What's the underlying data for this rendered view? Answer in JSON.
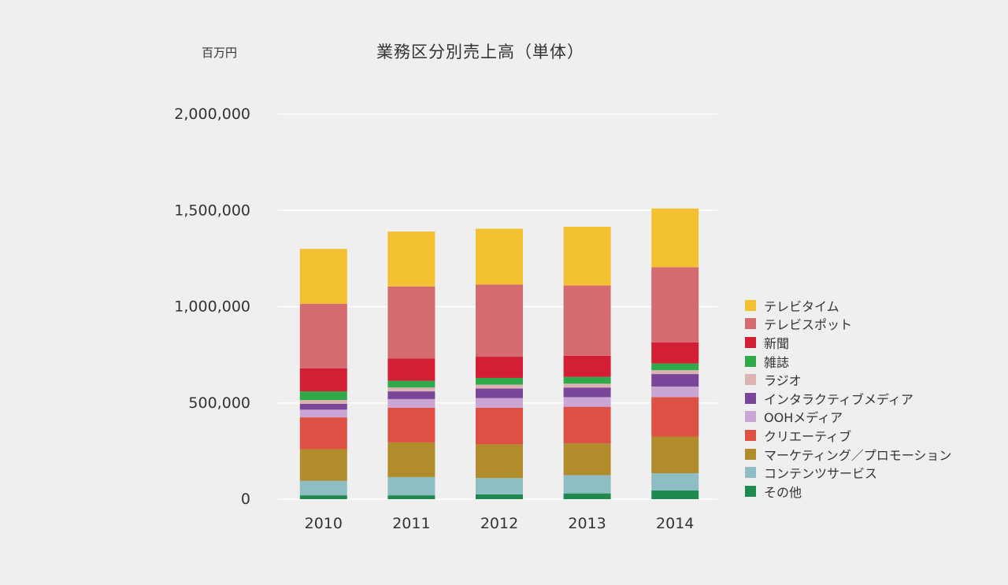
{
  "unit_label": "百万円",
  "chart_data": {
    "type": "bar",
    "stacked": true,
    "title": "業務区分別売上高（単体）",
    "xlabel": "",
    "ylabel": "百万円",
    "ylim": [
      0,
      2000000
    ],
    "yticks": [
      0,
      500000,
      1000000,
      1500000,
      2000000
    ],
    "ytick_labels": [
      "0",
      "500,000",
      "1,000,000",
      "1,500,000",
      "2,000,000"
    ],
    "categories": [
      "2010",
      "2011",
      "2012",
      "2013",
      "2014"
    ],
    "grid": true,
    "legend_position": "right",
    "series": [
      {
        "name": "その他",
        "color": "#1f8a4f",
        "values": [
          20000,
          20000,
          25000,
          30000,
          45000
        ]
      },
      {
        "name": "コンテンツサービス",
        "color": "#8fbdc4",
        "values": [
          75000,
          95000,
          85000,
          95000,
          90000
        ]
      },
      {
        "name": "マーケティング／プロモーション",
        "color": "#b08c2a",
        "values": [
          165000,
          180000,
          175000,
          165000,
          190000
        ]
      },
      {
        "name": "クリエーティブ",
        "color": "#df5044",
        "values": [
          165000,
          180000,
          190000,
          190000,
          205000
        ]
      },
      {
        "name": "OOHメディア",
        "color": "#c9a6d3",
        "values": [
          40000,
          45000,
          50000,
          50000,
          55000
        ]
      },
      {
        "name": "インタラクティブメディア",
        "color": "#7a469a",
        "values": [
          30000,
          40000,
          50000,
          50000,
          65000
        ]
      },
      {
        "name": "ラジオ",
        "color": "#dcb3b1",
        "values": [
          20000,
          20000,
          20000,
          20000,
          20000
        ]
      },
      {
        "name": "雑誌",
        "color": "#2faa4a",
        "values": [
          45000,
          35000,
          35000,
          35000,
          35000
        ]
      },
      {
        "name": "新聞",
        "color": "#d21f34",
        "values": [
          120000,
          115000,
          110000,
          110000,
          110000
        ]
      },
      {
        "name": "テレビスポット",
        "color": "#d36b71",
        "values": [
          335000,
          375000,
          375000,
          365000,
          390000
        ]
      },
      {
        "name": "テレビタイム",
        "color": "#f2c030",
        "values": [
          285000,
          285000,
          290000,
          305000,
          305000
        ]
      }
    ]
  }
}
